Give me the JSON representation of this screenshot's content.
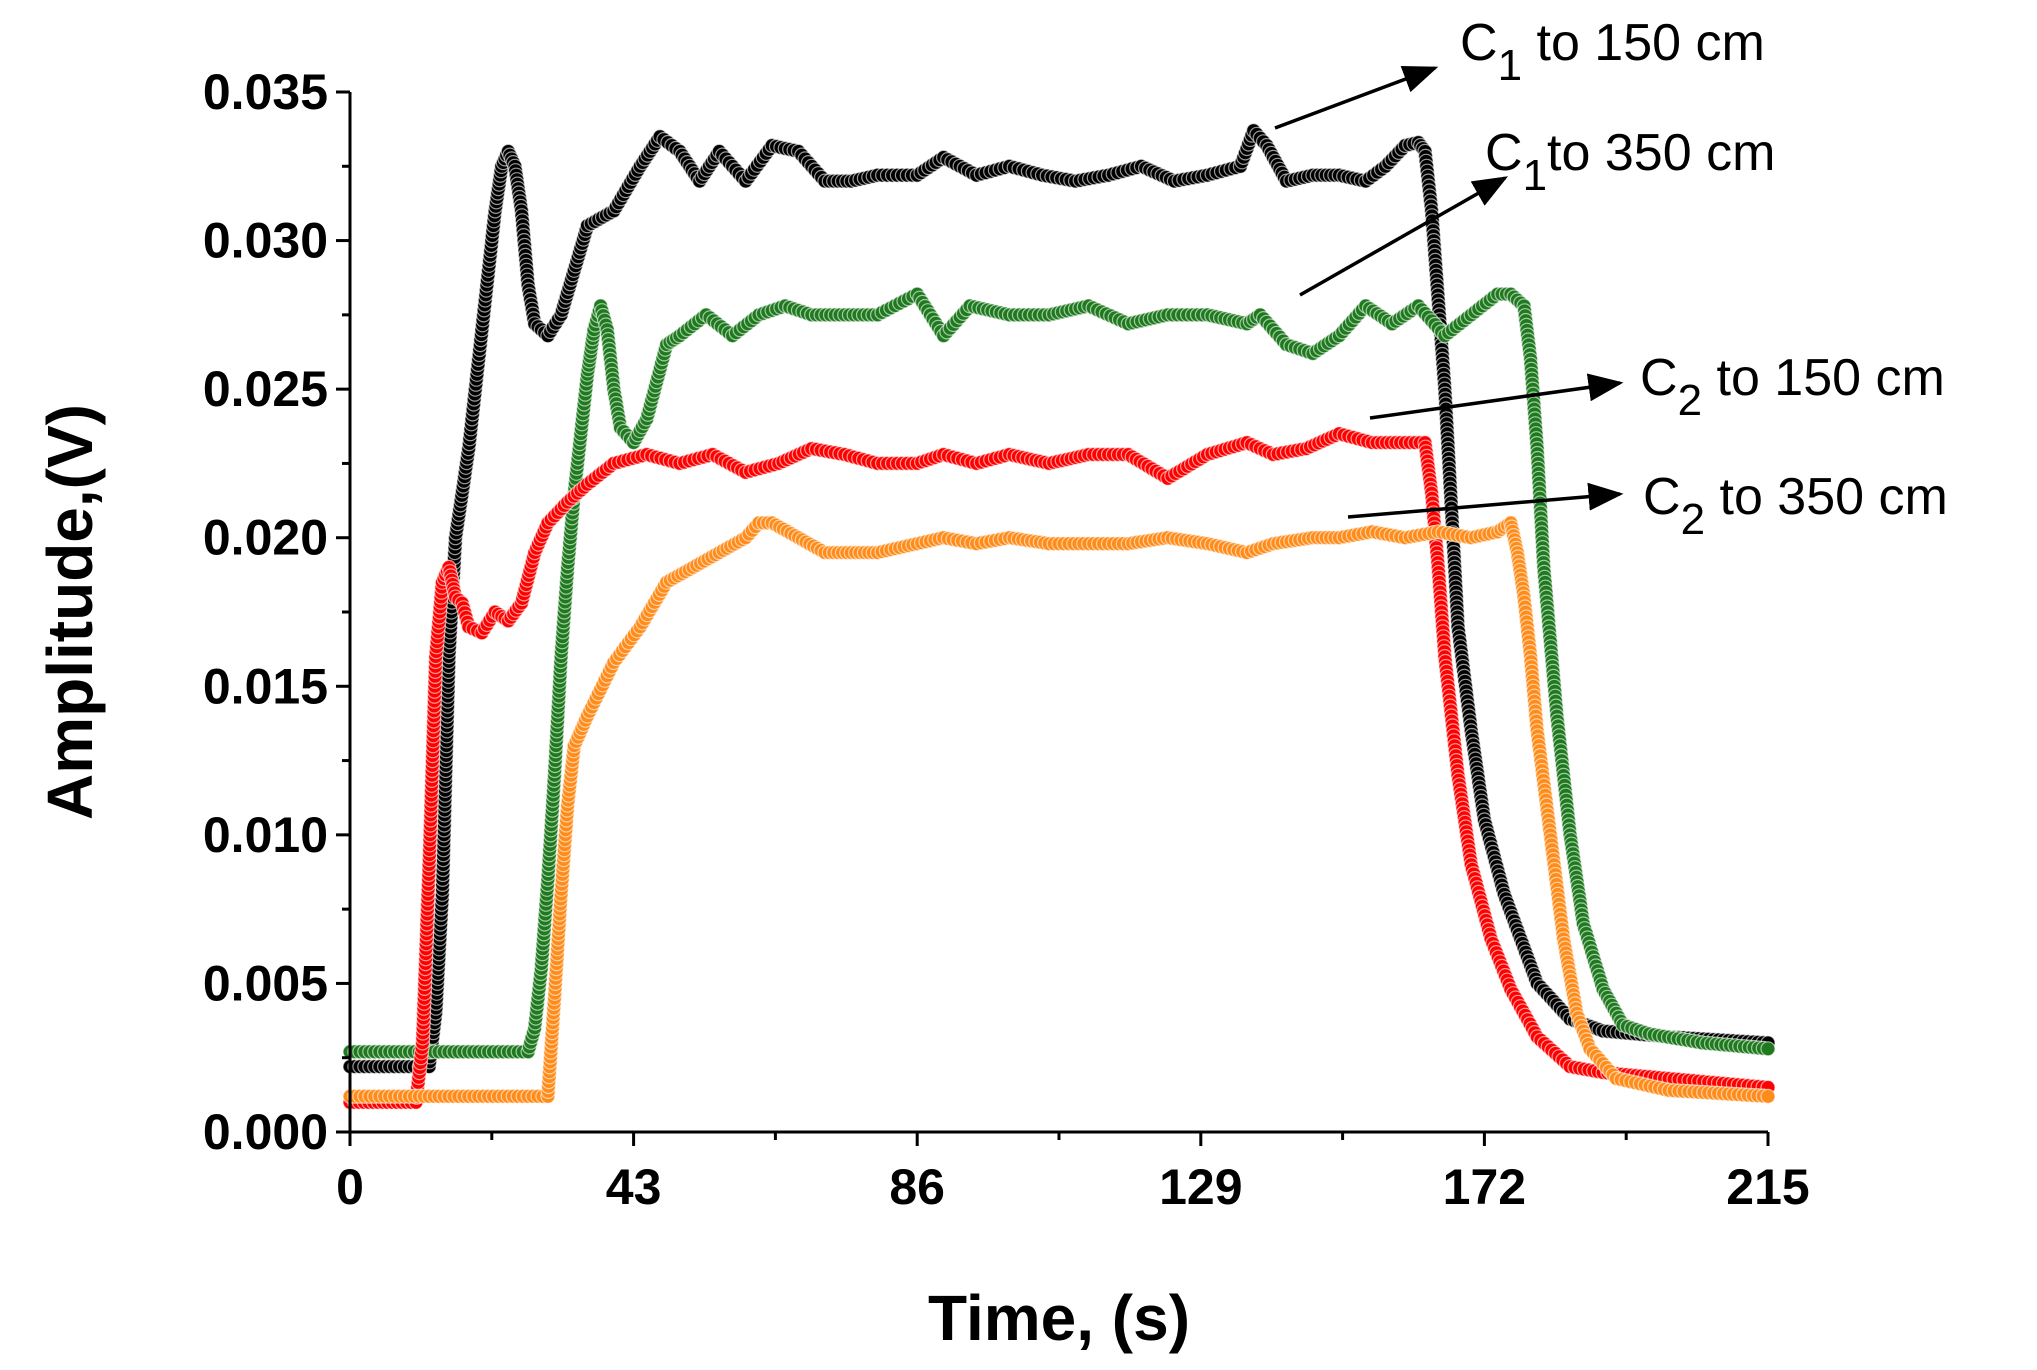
{
  "chart_data": {
    "type": "scatter",
    "title": "",
    "xlabel": "Time, (s)",
    "ylabel": "Amplitude,(V)",
    "xlim": [
      0,
      215
    ],
    "ylim": [
      0,
      0.035
    ],
    "x_ticks": [
      "0",
      "43",
      "86",
      "129",
      "172",
      "215"
    ],
    "y_ticks": [
      "0.000",
      "0.005",
      "0.010",
      "0.015",
      "0.020",
      "0.025",
      "0.030",
      "0.035"
    ],
    "grid": false,
    "legend": "annotations with arrows",
    "annotations": [
      {
        "base": "C",
        "sub": "1",
        "rest": " to 150 cm",
        "series": 0
      },
      {
        "base": "C",
        "sub": "1",
        "rest": "to 350 cm",
        "series": 1
      },
      {
        "base": "C",
        "sub": "2",
        "rest": " to 150 cm",
        "series": 2
      },
      {
        "base": "C",
        "sub": "2",
        "rest": " to 350 cm",
        "series": 3
      }
    ],
    "series": [
      {
        "color": "#000000",
        "points": [
          [
            0,
            0.0022
          ],
          [
            12,
            0.0022
          ],
          [
            13,
            0.004
          ],
          [
            14,
            0.008
          ],
          [
            15,
            0.016
          ],
          [
            16,
            0.02
          ],
          [
            18,
            0.023
          ],
          [
            20,
            0.027
          ],
          [
            22,
            0.031
          ],
          [
            23,
            0.0325
          ],
          [
            24,
            0.033
          ],
          [
            25,
            0.0325
          ],
          [
            26,
            0.031
          ],
          [
            27,
            0.0285
          ],
          [
            28,
            0.0272
          ],
          [
            30,
            0.0268
          ],
          [
            32,
            0.0275
          ],
          [
            34,
            0.029
          ],
          [
            36,
            0.0305
          ],
          [
            40,
            0.031
          ],
          [
            44,
            0.0325
          ],
          [
            47,
            0.0335
          ],
          [
            50,
            0.033
          ],
          [
            53,
            0.032
          ],
          [
            56,
            0.033
          ],
          [
            60,
            0.032
          ],
          [
            64,
            0.0332
          ],
          [
            68,
            0.033
          ],
          [
            72,
            0.032
          ],
          [
            76,
            0.032
          ],
          [
            80,
            0.0322
          ],
          [
            86,
            0.0322
          ],
          [
            90,
            0.0328
          ],
          [
            95,
            0.0322
          ],
          [
            100,
            0.0325
          ],
          [
            105,
            0.0322
          ],
          [
            110,
            0.032
          ],
          [
            115,
            0.0322
          ],
          [
            120,
            0.0325
          ],
          [
            125,
            0.032
          ],
          [
            130,
            0.0322
          ],
          [
            135,
            0.0325
          ],
          [
            137,
            0.0337
          ],
          [
            139,
            0.0332
          ],
          [
            142,
            0.032
          ],
          [
            146,
            0.0322
          ],
          [
            150,
            0.0322
          ],
          [
            154,
            0.032
          ],
          [
            157,
            0.0325
          ],
          [
            160,
            0.0332
          ],
          [
            162,
            0.0333
          ],
          [
            163,
            0.033
          ],
          [
            164,
            0.031
          ],
          [
            165,
            0.028
          ],
          [
            166,
            0.025
          ],
          [
            167,
            0.021
          ],
          [
            168,
            0.017
          ],
          [
            170,
            0.0135
          ],
          [
            172,
            0.0105
          ],
          [
            175,
            0.008
          ],
          [
            180,
            0.005
          ],
          [
            185,
            0.0038
          ],
          [
            190,
            0.0034
          ],
          [
            200,
            0.0032
          ],
          [
            215,
            0.003
          ]
        ]
      },
      {
        "color": "#1f7a1f",
        "points": [
          [
            0,
            0.0027
          ],
          [
            27,
            0.0027
          ],
          [
            28,
            0.0035
          ],
          [
            29,
            0.0055
          ],
          [
            30,
            0.0085
          ],
          [
            31,
            0.012
          ],
          [
            32,
            0.016
          ],
          [
            33,
            0.019
          ],
          [
            34,
            0.0215
          ],
          [
            35,
            0.0235
          ],
          [
            36,
            0.0255
          ],
          [
            37,
            0.027
          ],
          [
            38,
            0.0278
          ],
          [
            39,
            0.027
          ],
          [
            40,
            0.025
          ],
          [
            41,
            0.0237
          ],
          [
            43,
            0.0232
          ],
          [
            45,
            0.024
          ],
          [
            48,
            0.0265
          ],
          [
            50,
            0.0268
          ],
          [
            54,
            0.0275
          ],
          [
            58,
            0.0268
          ],
          [
            62,
            0.0275
          ],
          [
            66,
            0.0278
          ],
          [
            70,
            0.0275
          ],
          [
            75,
            0.0275
          ],
          [
            80,
            0.0275
          ],
          [
            86,
            0.0282
          ],
          [
            88,
            0.0275
          ],
          [
            90,
            0.0268
          ],
          [
            94,
            0.0278
          ],
          [
            100,
            0.0275
          ],
          [
            106,
            0.0275
          ],
          [
            112,
            0.0278
          ],
          [
            118,
            0.0272
          ],
          [
            124,
            0.0275
          ],
          [
            130,
            0.0275
          ],
          [
            136,
            0.0272
          ],
          [
            138,
            0.0275
          ],
          [
            142,
            0.0265
          ],
          [
            146,
            0.0262
          ],
          [
            150,
            0.0268
          ],
          [
            154,
            0.0278
          ],
          [
            158,
            0.0272
          ],
          [
            162,
            0.0278
          ],
          [
            166,
            0.0268
          ],
          [
            170,
            0.0275
          ],
          [
            174,
            0.0282
          ],
          [
            176,
            0.0282
          ],
          [
            178,
            0.0278
          ],
          [
            179,
            0.026
          ],
          [
            180,
            0.023
          ],
          [
            181,
            0.019
          ],
          [
            183,
            0.014
          ],
          [
            185,
            0.01
          ],
          [
            187,
            0.007
          ],
          [
            190,
            0.0048
          ],
          [
            193,
            0.0036
          ],
          [
            197,
            0.0033
          ],
          [
            205,
            0.003
          ],
          [
            215,
            0.0028
          ]
        ]
      },
      {
        "color": "#ff0000",
        "points": [
          [
            0,
            0.001
          ],
          [
            10,
            0.001
          ],
          [
            11,
            0.003
          ],
          [
            12,
            0.009
          ],
          [
            13,
            0.016
          ],
          [
            14,
            0.0185
          ],
          [
            15,
            0.019
          ],
          [
            16,
            0.018
          ],
          [
            17,
            0.0178
          ],
          [
            18,
            0.017
          ],
          [
            20,
            0.0168
          ],
          [
            22,
            0.0175
          ],
          [
            24,
            0.0172
          ],
          [
            26,
            0.0178
          ],
          [
            28,
            0.0195
          ],
          [
            30,
            0.0205
          ],
          [
            33,
            0.0212
          ],
          [
            36,
            0.0218
          ],
          [
            40,
            0.0225
          ],
          [
            45,
            0.0228
          ],
          [
            50,
            0.0225
          ],
          [
            55,
            0.0228
          ],
          [
            60,
            0.0222
          ],
          [
            65,
            0.0225
          ],
          [
            70,
            0.023
          ],
          [
            75,
            0.0228
          ],
          [
            80,
            0.0225
          ],
          [
            86,
            0.0225
          ],
          [
            90,
            0.0228
          ],
          [
            95,
            0.0225
          ],
          [
            100,
            0.0228
          ],
          [
            106,
            0.0225
          ],
          [
            112,
            0.0228
          ],
          [
            118,
            0.0228
          ],
          [
            124,
            0.022
          ],
          [
            130,
            0.0228
          ],
          [
            136,
            0.0232
          ],
          [
            140,
            0.0228
          ],
          [
            145,
            0.023
          ],
          [
            150,
            0.0235
          ],
          [
            155,
            0.0232
          ],
          [
            160,
            0.0232
          ],
          [
            163,
            0.0232
          ],
          [
            164,
            0.0215
          ],
          [
            165,
            0.019
          ],
          [
            166,
            0.016
          ],
          [
            168,
            0.012
          ],
          [
            170,
            0.009
          ],
          [
            173,
            0.0065
          ],
          [
            176,
            0.0048
          ],
          [
            180,
            0.0032
          ],
          [
            185,
            0.0022
          ],
          [
            190,
            0.002
          ],
          [
            200,
            0.0018
          ],
          [
            215,
            0.0015
          ]
        ]
      },
      {
        "color": "#ff8c1a",
        "points": [
          [
            0,
            0.0012
          ],
          [
            30,
            0.0012
          ],
          [
            31,
            0.0045
          ],
          [
            32,
            0.008
          ],
          [
            33,
            0.011
          ],
          [
            34,
            0.013
          ],
          [
            36,
            0.014
          ],
          [
            40,
            0.0158
          ],
          [
            44,
            0.017
          ],
          [
            48,
            0.0185
          ],
          [
            52,
            0.019
          ],
          [
            56,
            0.0195
          ],
          [
            60,
            0.02
          ],
          [
            62,
            0.0205
          ],
          [
            64,
            0.0205
          ],
          [
            68,
            0.02
          ],
          [
            72,
            0.0195
          ],
          [
            76,
            0.0195
          ],
          [
            80,
            0.0195
          ],
          [
            86,
            0.0198
          ],
          [
            90,
            0.02
          ],
          [
            95,
            0.0198
          ],
          [
            100,
            0.02
          ],
          [
            106,
            0.0198
          ],
          [
            112,
            0.0198
          ],
          [
            118,
            0.0198
          ],
          [
            124,
            0.02
          ],
          [
            130,
            0.0198
          ],
          [
            136,
            0.0195
          ],
          [
            140,
            0.0198
          ],
          [
            146,
            0.02
          ],
          [
            150,
            0.02
          ],
          [
            155,
            0.0202
          ],
          [
            160,
            0.02
          ],
          [
            165,
            0.0202
          ],
          [
            170,
            0.02
          ],
          [
            174,
            0.0202
          ],
          [
            176,
            0.0205
          ],
          [
            177,
            0.0195
          ],
          [
            178,
            0.018
          ],
          [
            179,
            0.016
          ],
          [
            180,
            0.0135
          ],
          [
            182,
            0.01
          ],
          [
            184,
            0.0065
          ],
          [
            186,
            0.004
          ],
          [
            188,
            0.0028
          ],
          [
            192,
            0.0018
          ],
          [
            200,
            0.0014
          ],
          [
            215,
            0.0012
          ]
        ]
      }
    ]
  }
}
